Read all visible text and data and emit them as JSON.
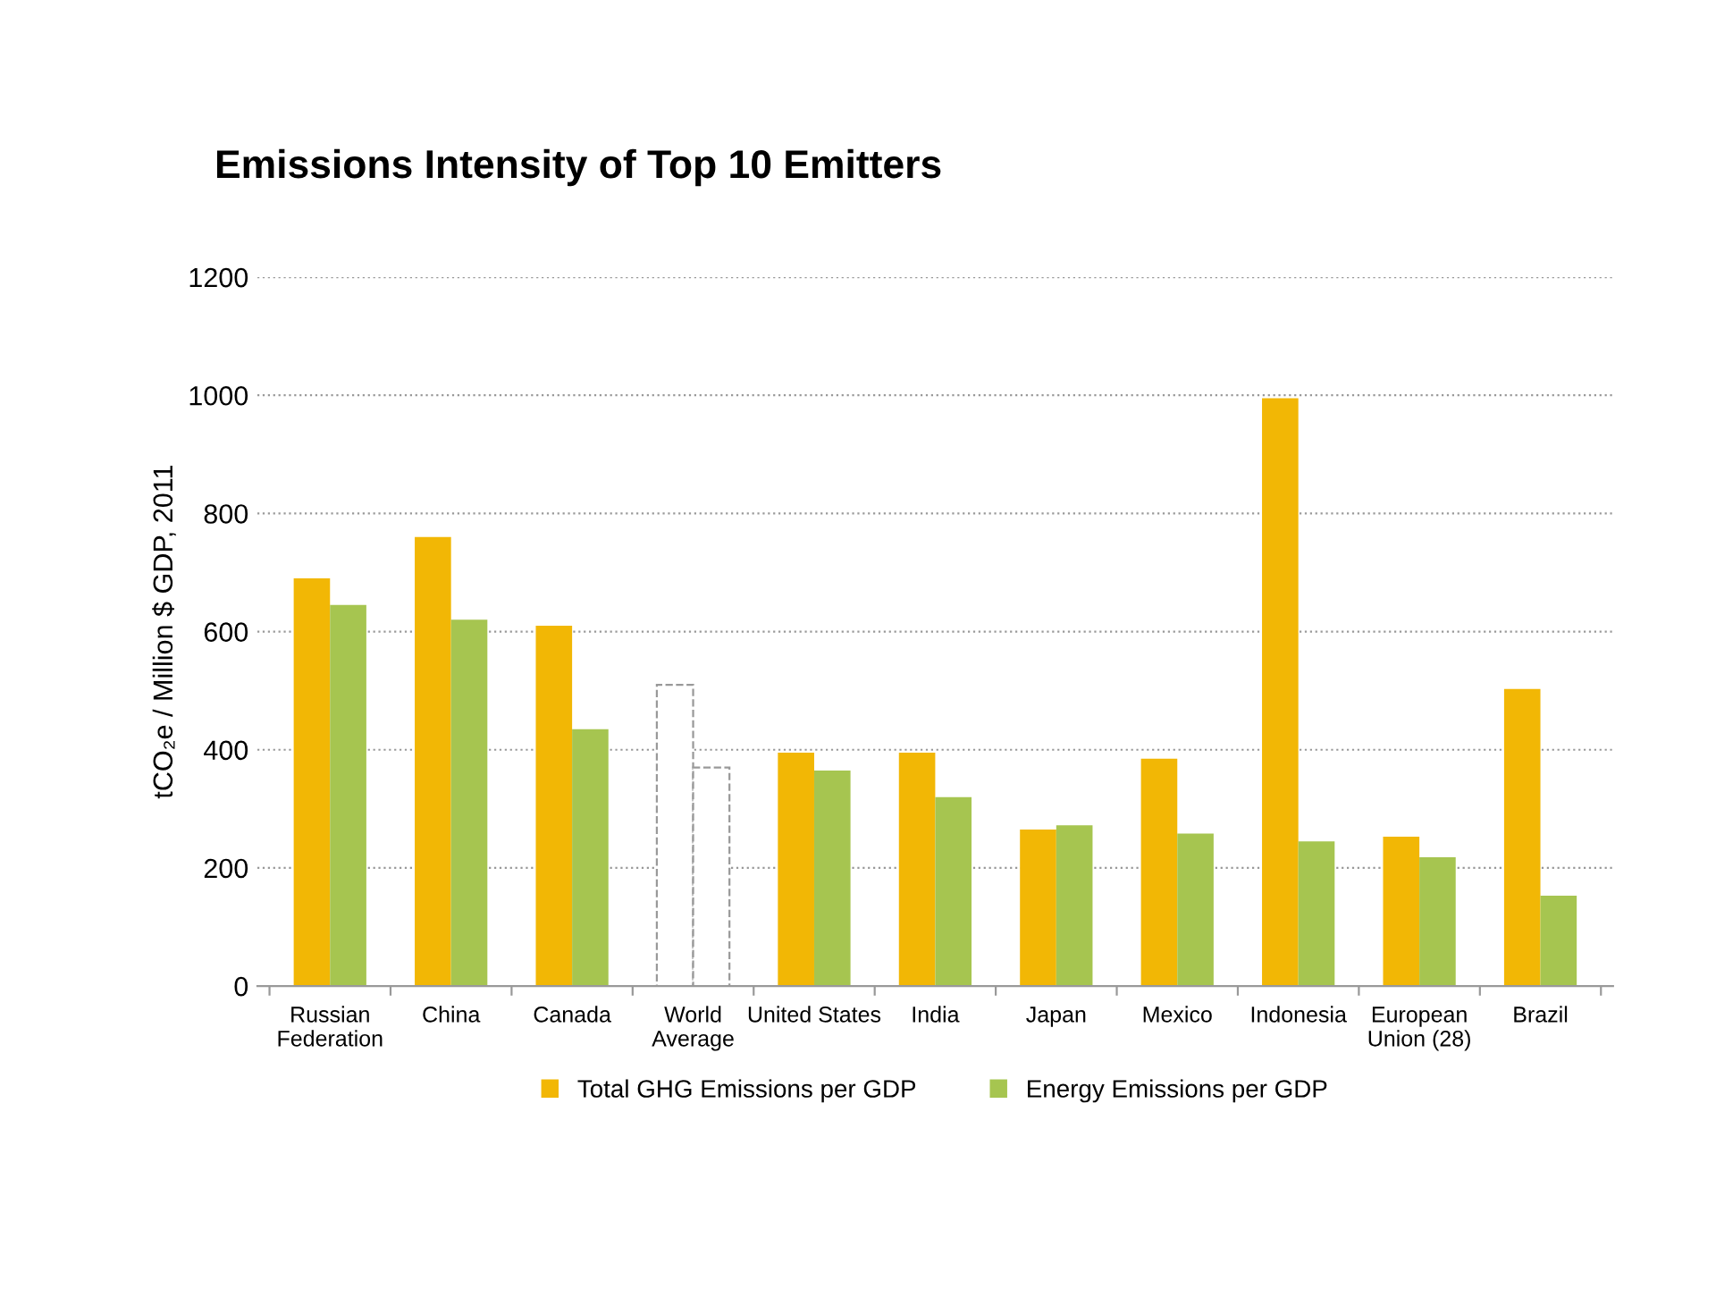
{
  "chart_data": {
    "type": "bar",
    "title": "Emissions Intensity of Top 10 Emitters",
    "ylabel": "tCO₂e / Million $ GDP, 2011",
    "categories": [
      "Russian\nFederation",
      "China",
      "Canada",
      "World\nAverage",
      "United States",
      "India",
      "Japan",
      "Mexico",
      "Indonesia",
      "European\nUnion (28)",
      "Brazil"
    ],
    "series": [
      {
        "name": "Total GHG Emissions per GDP",
        "color": "#f2b705",
        "colors": [
          "#f2b705",
          "#f2b705",
          "#f2b705",
          "#ffffff",
          "#f2b705",
          "#f2b705",
          "#f2b705",
          "#f2b705",
          "#f2b705",
          "#f2b705",
          "#f2b705"
        ],
        "values": [
          690,
          760,
          610,
          510,
          395,
          395,
          265,
          385,
          995,
          253,
          503
        ]
      },
      {
        "name": "Energy Emissions per GDP",
        "color": "#a6c550",
        "colors": [
          "#a6c550",
          "#a6c550",
          "#a6c550",
          "#ffffff",
          "#a6c550",
          "#a6c550",
          "#a6c550",
          "#a6c550",
          "#a6c550",
          "#a6c550",
          "#a6c550"
        ],
        "values": [
          645,
          620,
          435,
          370,
          365,
          320,
          272,
          258,
          245,
          218,
          153
        ]
      }
    ],
    "ylim": [
      0,
      1200
    ],
    "yticks": [
      0,
      200,
      400,
      600,
      800,
      1000,
      1200
    ],
    "grid": "y",
    "legend": "bottom"
  }
}
